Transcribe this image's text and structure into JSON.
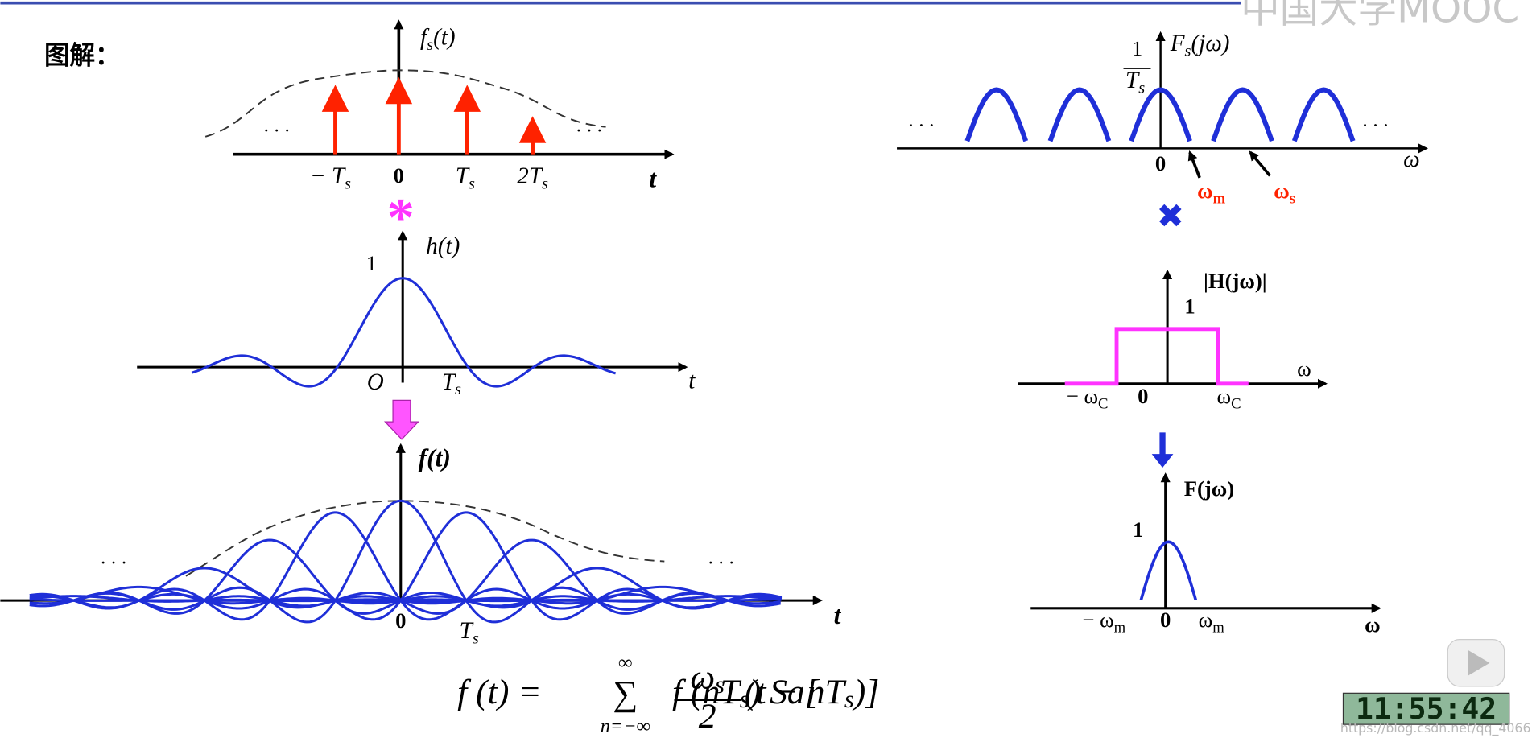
{
  "header": {
    "title": "图解：",
    "logo": "中国大学MOOC"
  },
  "sampled_signal": {
    "axis_label": [
      "f",
      "s",
      "(t)"
    ],
    "ticks": [
      [
        "− T",
        "s"
      ],
      [
        "0"
      ],
      [
        "T",
        "s"
      ],
      [
        "2T",
        "s"
      ]
    ],
    "t_label": "t",
    "ellipsis": "···"
  },
  "convolution": "*",
  "impulse_response": {
    "axis_label": [
      "h",
      "(t)"
    ],
    "peak": "1",
    "origin": "O",
    "tick": [
      "T",
      "s"
    ],
    "t_label": "t"
  },
  "reconstructed": {
    "axis_label": [
      "f",
      "(t)"
    ],
    "origin": "0",
    "tick": [
      "T",
      "s"
    ],
    "t_label": "t",
    "ellipsis": "···"
  },
  "spectrum": {
    "axis_label": [
      "F",
      "s",
      "(jω)"
    ],
    "peak": [
      "1",
      "T",
      "s"
    ],
    "origin": "0",
    "w_label": "ω",
    "omega_m": [
      "ω",
      "m"
    ],
    "omega_s": [
      "ω",
      "s"
    ],
    "ellipsis": "···"
  },
  "multiplication": "✖",
  "filter": {
    "axis_label": "|H(jω)|",
    "peak": "1",
    "neg": [
      "− ω",
      "C"
    ],
    "origin": "0",
    "pos": [
      "ω",
      "C"
    ],
    "w_label": "ω"
  },
  "output": {
    "axis_label": "F(jω)",
    "peak": "1",
    "neg": [
      "− ω",
      "m"
    ],
    "origin": "0",
    "pos": [
      "ω",
      "m"
    ],
    "w_label": "ω"
  },
  "formula": {
    "lhs": "f (t) = ",
    "sum": "∑",
    "upper": "∞",
    "lower": "n=−∞",
    "term": [
      "f (nT",
      "s",
      ") Sa["
    ],
    "frac_num": [
      "ω",
      "s"
    ],
    "frac_den": "2",
    "arg": [
      "(t − nT",
      "s",
      ")]"
    ]
  },
  "timestamp": "11:55:42",
  "watermark": "https://blog.csdn.net/qq_4066"
}
